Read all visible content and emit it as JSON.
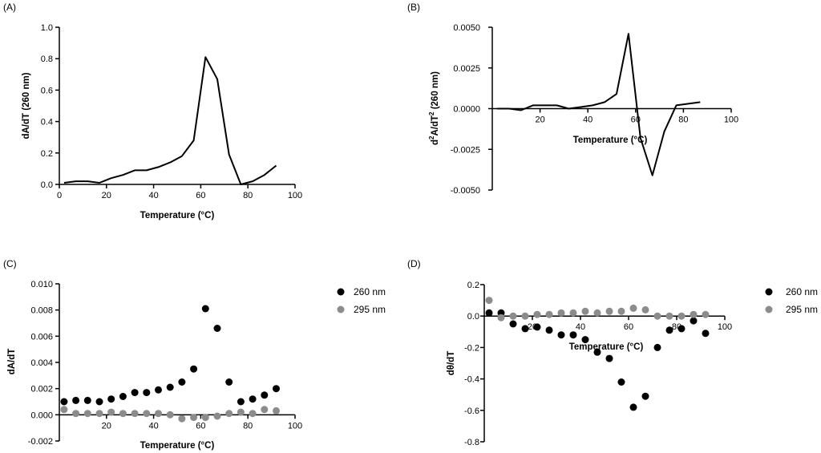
{
  "chart_data": [
    {
      "panel": "(A)",
      "type": "line",
      "xlabel": "Temperature (°C)",
      "ylabel": "dA/dT (260 nm)",
      "xlim": [
        0,
        100
      ],
      "ylim": [
        0,
        1.0
      ],
      "xticks": [
        0,
        20,
        40,
        60,
        80,
        100
      ],
      "xtick_labels": [
        "0",
        "20",
        "40",
        "60",
        "80",
        "100"
      ],
      "yticks": [
        0,
        0.2,
        0.4,
        0.6,
        0.8,
        1.0
      ],
      "ytick_labels": [
        "0.0",
        "0.2",
        "0.4",
        "0.6",
        "0.8",
        "1.0"
      ],
      "series": [
        {
          "name": "260 nm",
          "color": "#000000",
          "x": [
            2,
            7,
            12,
            17,
            22,
            27,
            32,
            37,
            42,
            47,
            52,
            57,
            62,
            67,
            72,
            77,
            82,
            87,
            92
          ],
          "y": [
            0.01,
            0.02,
            0.02,
            0.01,
            0.04,
            0.06,
            0.09,
            0.09,
            0.11,
            0.14,
            0.18,
            0.28,
            0.81,
            0.67,
            0.19,
            0.0,
            0.02,
            0.06,
            0.12
          ]
        }
      ]
    },
    {
      "panel": "(B)",
      "type": "line",
      "xlabel": "Temperature (°C)",
      "ylabel_main": "d",
      "ylabel_sup1": "2",
      "ylabel_mid": "A/dT",
      "ylabel_sup2": "2",
      "ylabel_tail": " (260 nm)",
      "xlim": [
        0,
        100
      ],
      "ylim": [
        -0.005,
        0.005
      ],
      "xticks": [
        20,
        40,
        60,
        80,
        100
      ],
      "xtick_labels": [
        "20",
        "40",
        "60",
        "80",
        "100"
      ],
      "yticks": [
        -0.005,
        -0.0025,
        0,
        0.0025,
        0.005
      ],
      "ytick_labels": [
        "-0.0050",
        "-0.0025",
        "0.0000",
        "0.0025",
        "0.0050"
      ],
      "series": [
        {
          "name": "260 nm",
          "color": "#000000",
          "x": [
            2,
            7,
            12,
            17,
            22,
            27,
            32,
            37,
            42,
            47,
            52,
            57,
            62,
            67,
            72,
            77,
            82,
            87
          ],
          "y": [
            0.0,
            0.0,
            -0.0001,
            0.0002,
            0.0002,
            0.0002,
            0.0,
            0.0001,
            0.0002,
            0.0004,
            0.0009,
            0.0046,
            -0.0018,
            -0.0041,
            -0.0014,
            0.0002,
            0.0003,
            0.0004
          ]
        }
      ]
    },
    {
      "panel": "(C)",
      "type": "scatter",
      "xlabel": "Temperature (°C)",
      "ylabel": "dA/dT",
      "xlim": [
        0,
        100
      ],
      "ylim": [
        -0.002,
        0.01
      ],
      "xticks": [
        20,
        40,
        60,
        80,
        100
      ],
      "xtick_labels": [
        "20",
        "40",
        "60",
        "80",
        "100"
      ],
      "yticks": [
        -0.002,
        0,
        0.002,
        0.004,
        0.006,
        0.008,
        0.01
      ],
      "ytick_labels": [
        "-0.002",
        "0.000",
        "0.002",
        "0.004",
        "0.006",
        "0.008",
        "0.010"
      ],
      "legend": [
        "260 nm",
        "295 nm"
      ],
      "series": [
        {
          "name": "260 nm",
          "color": "#000000",
          "x": [
            2,
            7,
            12,
            17,
            22,
            27,
            32,
            37,
            42,
            47,
            52,
            57,
            62,
            67,
            72,
            77,
            82,
            87,
            92
          ],
          "y": [
            0.001,
            0.0011,
            0.0011,
            0.001,
            0.0012,
            0.0014,
            0.0017,
            0.0017,
            0.0019,
            0.0021,
            0.0025,
            0.0035,
            0.0081,
            0.0066,
            0.0025,
            0.001,
            0.0012,
            0.0015,
            0.002
          ]
        },
        {
          "name": "295 nm",
          "color": "#8c8c8c",
          "x": [
            2,
            7,
            12,
            17,
            22,
            27,
            32,
            37,
            42,
            47,
            52,
            57,
            62,
            67,
            72,
            77,
            82,
            87,
            92
          ],
          "y": [
            0.0004,
            0.0001,
            0.0001,
            0.0001,
            0.0002,
            0.0001,
            0.0001,
            0.0001,
            0.0001,
            0.0,
            -0.0003,
            -0.0002,
            -0.0002,
            -0.0001,
            0.0001,
            0.0002,
            0.0001,
            0.0004,
            0.0003
          ]
        }
      ]
    },
    {
      "panel": "(D)",
      "type": "scatter",
      "xlabel": "Temperature (°C)",
      "ylabel": "dθ/dT",
      "xlim": [
        0,
        100
      ],
      "ylim": [
        -0.8,
        0.2
      ],
      "xticks": [
        20,
        40,
        60,
        80,
        100
      ],
      "xtick_labels": [
        "20",
        "40",
        "60",
        "80",
        "100"
      ],
      "yticks": [
        -0.8,
        -0.6,
        -0.4,
        -0.2,
        0,
        0.2
      ],
      "ytick_labels": [
        "-0.8",
        "-0.6",
        "-0.4",
        "-0.2",
        "0.0",
        "0.2"
      ],
      "legend": [
        "260 nm",
        "295 nm"
      ],
      "series": [
        {
          "name": "260 nm",
          "color": "#000000",
          "x": [
            2,
            7,
            12,
            17,
            22,
            27,
            32,
            37,
            42,
            47,
            52,
            57,
            62,
            67,
            72,
            77,
            82,
            87,
            92
          ],
          "y": [
            0.02,
            0.02,
            -0.05,
            -0.08,
            -0.07,
            -0.09,
            -0.12,
            -0.12,
            -0.15,
            -0.23,
            -0.27,
            -0.42,
            -0.58,
            -0.51,
            -0.2,
            -0.09,
            -0.08,
            -0.03,
            -0.11
          ]
        },
        {
          "name": "295 nm",
          "color": "#8c8c8c",
          "x": [
            2,
            7,
            12,
            17,
            22,
            27,
            32,
            37,
            42,
            47,
            52,
            57,
            62,
            67,
            72,
            77,
            82,
            87,
            92
          ],
          "y": [
            0.1,
            -0.01,
            0.0,
            0.0,
            0.01,
            0.01,
            0.02,
            0.02,
            0.03,
            0.02,
            0.03,
            0.03,
            0.05,
            0.04,
            0.0,
            0.0,
            0.0,
            0.01,
            0.01
          ]
        }
      ]
    }
  ]
}
